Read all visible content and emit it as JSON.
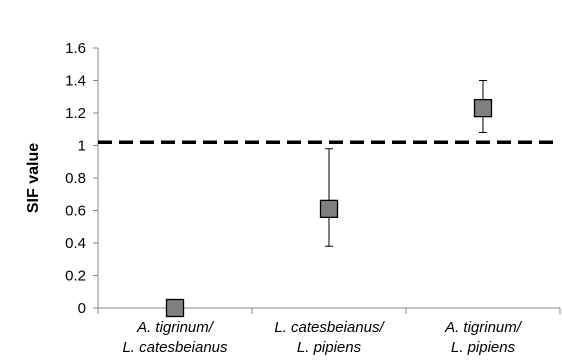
{
  "chart_data": {
    "type": "scatter",
    "title": "",
    "xlabel": "",
    "ylabel": "SIF value",
    "ylim": [
      0,
      1.6
    ],
    "yticks": [
      0,
      0.2,
      0.4,
      0.6,
      0.8,
      1,
      1.2,
      1.4,
      1.6
    ],
    "ytick_labels": [
      "0",
      "0.2",
      "0.4",
      "0.6",
      "0.8",
      "1",
      "1.2",
      "1.4",
      "1.6"
    ],
    "categories": [
      [
        "A. tigrinum/",
        "L. catesbeianus"
      ],
      [
        "L. catesbeianus/",
        "L. pipiens"
      ],
      [
        "A. tigrinum/",
        "L. pipiens"
      ]
    ],
    "values": [
      0,
      0.61,
      1.23
    ],
    "error_low": [
      null,
      0.38,
      1.08
    ],
    "error_high": [
      null,
      0.98,
      1.4
    ],
    "reference_line": 1.02,
    "reference_line_style": "dashed",
    "marker": "square",
    "marker_color": "#808080",
    "marker_edge_color": "#000000",
    "grid": false,
    "legend": "none"
  }
}
